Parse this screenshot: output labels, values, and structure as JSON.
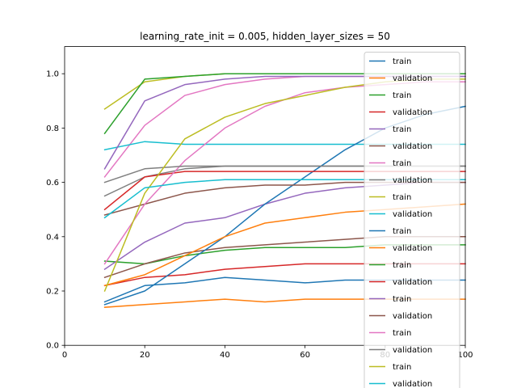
{
  "chart_data": {
    "type": "line",
    "title": "learning_rate_init = 0.005, hidden_layer_sizes = 50",
    "xlabel": "",
    "ylabel": "",
    "xlim": [
      0,
      100
    ],
    "ylim": [
      0,
      1.1
    ],
    "x_ticks": [
      "0",
      "20",
      "40",
      "60",
      "80",
      "100"
    ],
    "y_ticks": [
      "0.0",
      "0.2",
      "0.4",
      "0.6",
      "0.8",
      "1.0"
    ],
    "grid": false,
    "legend_position": "top-right",
    "x": [
      10,
      20,
      30,
      40,
      50,
      60,
      70,
      80,
      90,
      100
    ],
    "series": [
      {
        "name": "train",
        "color": "#1f77b4",
        "values": [
          0.16,
          0.22,
          0.23,
          0.25,
          0.24,
          0.23,
          0.24,
          0.24,
          0.24,
          0.24
        ]
      },
      {
        "name": "validation",
        "color": "#ff7f0e",
        "values": [
          0.14,
          0.15,
          0.16,
          0.17,
          0.16,
          0.17,
          0.17,
          0.17,
          0.17,
          0.17
        ]
      },
      {
        "name": "train",
        "color": "#2ca02c",
        "values": [
          0.31,
          0.3,
          0.33,
          0.35,
          0.36,
          0.36,
          0.36,
          0.37,
          0.37,
          0.37
        ]
      },
      {
        "name": "validation",
        "color": "#d62728",
        "values": [
          0.22,
          0.25,
          0.26,
          0.28,
          0.29,
          0.3,
          0.3,
          0.3,
          0.3,
          0.3
        ]
      },
      {
        "name": "train",
        "color": "#9467bd",
        "values": [
          0.28,
          0.38,
          0.45,
          0.47,
          0.52,
          0.56,
          0.58,
          0.59,
          0.6,
          0.6
        ]
      },
      {
        "name": "validation",
        "color": "#8c564b",
        "values": [
          0.25,
          0.3,
          0.34,
          0.36,
          0.37,
          0.38,
          0.39,
          0.4,
          0.4,
          0.4
        ]
      },
      {
        "name": "train",
        "color": "#e377c2",
        "values": [
          0.62,
          0.81,
          0.92,
          0.96,
          0.98,
          0.99,
          0.99,
          0.99,
          0.99,
          0.99
        ]
      },
      {
        "name": "validation",
        "color": "#7f7f7f",
        "values": [
          0.55,
          0.62,
          0.65,
          0.66,
          0.66,
          0.66,
          0.66,
          0.66,
          0.66,
          0.66
        ]
      },
      {
        "name": "train",
        "color": "#bcbd22",
        "values": [
          0.87,
          0.97,
          0.99,
          1.0,
          1.0,
          1.0,
          1.0,
          1.0,
          1.0,
          1.0
        ]
      },
      {
        "name": "validation",
        "color": "#17becf",
        "values": [
          0.72,
          0.75,
          0.74,
          0.74,
          0.74,
          0.74,
          0.74,
          0.74,
          0.74,
          0.74
        ]
      },
      {
        "name": "train",
        "color": "#1f77b4",
        "values": [
          0.15,
          0.2,
          0.3,
          0.4,
          0.52,
          0.62,
          0.72,
          0.8,
          0.85,
          0.88
        ]
      },
      {
        "name": "validation",
        "color": "#ff7f0e",
        "values": [
          0.22,
          0.26,
          0.33,
          0.4,
          0.45,
          0.47,
          0.49,
          0.5,
          0.51,
          0.52
        ]
      },
      {
        "name": "train",
        "color": "#2ca02c",
        "values": [
          0.78,
          0.98,
          0.99,
          1.0,
          1.0,
          1.0,
          1.0,
          1.0,
          1.0,
          1.0
        ]
      },
      {
        "name": "validation",
        "color": "#d62728",
        "values": [
          0.5,
          0.62,
          0.64,
          0.64,
          0.64,
          0.64,
          0.64,
          0.64,
          0.64,
          0.64
        ]
      },
      {
        "name": "train",
        "color": "#9467bd",
        "values": [
          0.65,
          0.9,
          0.96,
          0.98,
          0.99,
          0.99,
          0.99,
          0.99,
          0.99,
          0.99
        ]
      },
      {
        "name": "validation",
        "color": "#8c564b",
        "values": [
          0.48,
          0.52,
          0.56,
          0.58,
          0.59,
          0.59,
          0.6,
          0.6,
          0.6,
          0.6
        ]
      },
      {
        "name": "train",
        "color": "#e377c2",
        "values": [
          0.3,
          0.52,
          0.68,
          0.8,
          0.88,
          0.93,
          0.95,
          0.96,
          0.97,
          0.97
        ]
      },
      {
        "name": "validation",
        "color": "#7f7f7f",
        "values": [
          0.6,
          0.65,
          0.66,
          0.66,
          0.66,
          0.66,
          0.66,
          0.66,
          0.66,
          0.66
        ]
      },
      {
        "name": "train",
        "color": "#bcbd22",
        "values": [
          0.2,
          0.56,
          0.76,
          0.84,
          0.89,
          0.92,
          0.95,
          0.97,
          0.98,
          0.98
        ]
      },
      {
        "name": "validation",
        "color": "#17becf",
        "values": [
          0.47,
          0.58,
          0.6,
          0.61,
          0.61,
          0.61,
          0.61,
          0.61,
          0.61,
          0.61
        ]
      }
    ]
  }
}
